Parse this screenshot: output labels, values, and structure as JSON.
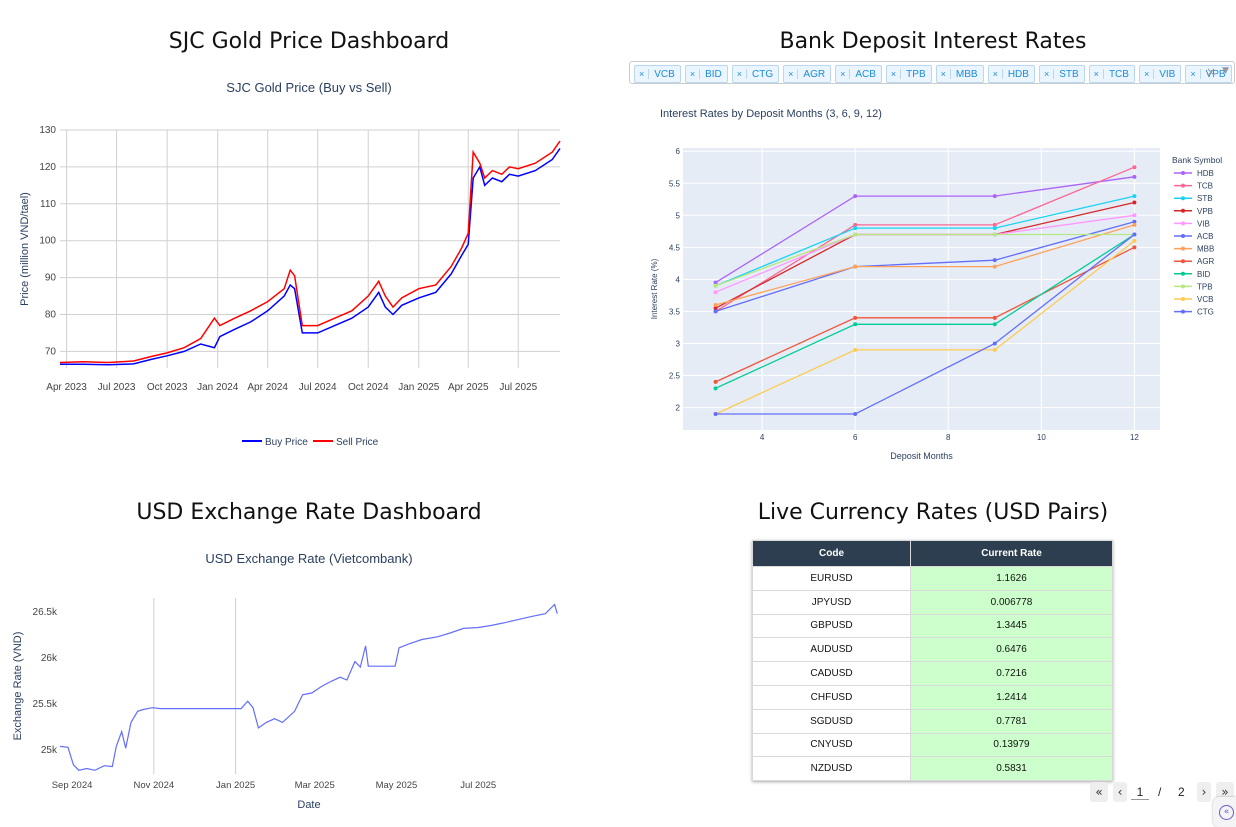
{
  "titles": {
    "gold": "SJC Gold Price Dashboard",
    "bank": "Bank Deposit Interest Rates",
    "usd": "USD Exchange Rate Dashboard",
    "live": "Live Currency Rates (USD Pairs)"
  },
  "colors": {
    "buy": "#0000ff",
    "sell": "#ff0000",
    "usd_line": "#636efa",
    "plot_bg": "#e5ecf6",
    "header_bg": "#2c3e50",
    "rate_bg": "#ccffcc"
  },
  "bank_filter": {
    "selected": [
      "VCB",
      "BID",
      "CTG",
      "AGR",
      "ACB",
      "TPB",
      "MBB",
      "HDB",
      "STB",
      "TCB",
      "VIB",
      "VPB"
    ],
    "remove_icon": "×",
    "clear_icon": "×"
  },
  "table": {
    "columns": [
      "Code",
      "Current Rate"
    ],
    "rows": [
      {
        "code": "EURUSD",
        "rate": "1.1626"
      },
      {
        "code": "JPYUSD",
        "rate": "0.006778"
      },
      {
        "code": "GBPUSD",
        "rate": "1.3445"
      },
      {
        "code": "AUDUSD",
        "rate": "0.6476"
      },
      {
        "code": "CADUSD",
        "rate": "0.7216"
      },
      {
        "code": "CHFUSD",
        "rate": "1.2414"
      },
      {
        "code": "SGDUSD",
        "rate": "0.7781"
      },
      {
        "code": "CNYUSD",
        "rate": "0.13979"
      },
      {
        "code": "NZDUSD",
        "rate": "0.5831"
      }
    ]
  },
  "pagination": {
    "current": "1",
    "separator": "/",
    "total": "2",
    "first_icon": "«",
    "prev_icon": "‹",
    "next_icon": "›",
    "last_icon": "»"
  },
  "chart_data": [
    {
      "id": "gold",
      "type": "line",
      "title": "SJC Gold Price (Buy vs Sell)",
      "xlabel": "",
      "ylabel": "Price (million VND/tael)",
      "ylim": [
        65.5,
        130
      ],
      "yticks": [
        70,
        80,
        90,
        100,
        110,
        120,
        130
      ],
      "x_tick_labels": [
        "Apr 2023",
        "Jul 2023",
        "Oct 2023",
        "Jan 2024",
        "Apr 2024",
        "Jul 2024",
        "Oct 2024",
        "Jan 2025",
        "Apr 2025",
        "Jul 2025"
      ],
      "x_ticks": [
        "2023-04-01",
        "2023-07-01",
        "2023-10-01",
        "2024-01-01",
        "2024-04-01",
        "2024-07-01",
        "2024-10-01",
        "2025-01-01",
        "2025-04-01",
        "2025-07-01"
      ],
      "xlim": [
        "2023-03-20",
        "2025-09-15"
      ],
      "legend_position": "bottom",
      "x": [
        "2023-03-20",
        "2023-05-01",
        "2023-06-15",
        "2023-08-01",
        "2023-09-01",
        "2023-10-01",
        "2023-11-01",
        "2023-12-01",
        "2023-12-26",
        "2024-01-05",
        "2024-02-01",
        "2024-03-01",
        "2024-04-01",
        "2024-05-01",
        "2024-05-12",
        "2024-05-20",
        "2024-06-03",
        "2024-06-15",
        "2024-07-01",
        "2024-08-01",
        "2024-09-01",
        "2024-10-01",
        "2024-10-20",
        "2024-11-01",
        "2024-11-15",
        "2024-12-01",
        "2025-01-01",
        "2025-02-01",
        "2025-03-01",
        "2025-03-20",
        "2025-04-01",
        "2025-04-10",
        "2025-04-22",
        "2025-05-01",
        "2025-05-15",
        "2025-06-01",
        "2025-06-15",
        "2025-07-01",
        "2025-08-01",
        "2025-09-01",
        "2025-09-15"
      ],
      "series": [
        {
          "name": "Buy Price",
          "values": [
            66.5,
            66.5,
            66.4,
            66.6,
            67.8,
            68.8,
            70.0,
            72.0,
            71.0,
            74.0,
            76.0,
            78.0,
            81.0,
            85.0,
            88.0,
            87.0,
            75.0,
            75.0,
            75.0,
            77.0,
            79.0,
            82.0,
            86.0,
            82.0,
            80.0,
            82.5,
            84.5,
            86.0,
            91.0,
            96.0,
            99.0,
            117.0,
            120.0,
            115.0,
            117.0,
            116.0,
            118.0,
            117.5,
            119.0,
            122.0,
            125.0
          ]
        },
        {
          "name": "Sell Price",
          "values": [
            67.0,
            67.2,
            67.0,
            67.4,
            68.6,
            69.6,
            71.0,
            73.5,
            79.0,
            77.0,
            79.0,
            81.0,
            83.5,
            87.0,
            92.0,
            90.5,
            77.0,
            77.0,
            77.0,
            79.0,
            81.0,
            85.0,
            89.0,
            85.0,
            82.0,
            84.5,
            87.0,
            88.0,
            93.0,
            98.0,
            102.0,
            124.0,
            121.0,
            117.0,
            119.0,
            118.0,
            120.0,
            119.5,
            121.0,
            124.0,
            127.0
          ]
        }
      ]
    },
    {
      "id": "bank",
      "type": "line",
      "title": "Interest Rates by Deposit Months (3, 6, 9, 12)",
      "xlabel": "Deposit Months",
      "ylabel": "Interest Rate (%)",
      "legend_title": "Bank Symbol",
      "legend_position": "right",
      "xlim": [
        2.3,
        12.55
      ],
      "ylim": [
        1.65,
        6.05
      ],
      "xticks": [
        4,
        6,
        8,
        10,
        12
      ],
      "yticks": [
        2,
        2.5,
        3,
        3.5,
        4,
        4.5,
        5,
        5.5,
        6
      ],
      "x": [
        3,
        6,
        9,
        12
      ],
      "series": [
        {
          "name": "HDB",
          "color": "#ab63fa",
          "values": [
            3.95,
            5.3,
            5.3,
            5.6
          ]
        },
        {
          "name": "TCB",
          "color": "#ff6692",
          "values": [
            3.5,
            4.85,
            4.85,
            5.75
          ]
        },
        {
          "name": "STB",
          "color": "#19d3f3",
          "values": [
            3.9,
            4.8,
            4.8,
            5.3
          ]
        },
        {
          "name": "VPB",
          "color": "#d62728",
          "values": [
            3.55,
            4.7,
            4.7,
            5.2
          ]
        },
        {
          "name": "VIB",
          "color": "#ff97ff",
          "values": [
            3.8,
            4.7,
            4.7,
            5.0
          ]
        },
        {
          "name": "ACB",
          "color": "#636efa",
          "values": [
            3.5,
            4.2,
            4.3,
            4.9
          ]
        },
        {
          "name": "MBB",
          "color": "#ffa15a",
          "values": [
            3.6,
            4.2,
            4.2,
            4.85
          ]
        },
        {
          "name": "AGR",
          "color": "#ef553b",
          "values": [
            2.4,
            3.4,
            3.4,
            4.5
          ]
        },
        {
          "name": "BID",
          "color": "#00cc96",
          "values": [
            2.3,
            3.3,
            3.3,
            4.7
          ]
        },
        {
          "name": "TPB",
          "color": "#b6e880",
          "values": [
            3.9,
            4.7,
            4.7,
            4.7
          ]
        },
        {
          "name": "VCB",
          "color": "#fecb52",
          "values": [
            1.9,
            2.9,
            2.9,
            4.6
          ]
        },
        {
          "name": "CTG",
          "color": "#636efa",
          "values": [
            1.9,
            1.9,
            3.0,
            4.7
          ]
        }
      ]
    },
    {
      "id": "usd",
      "type": "line",
      "title": "USD Exchange Rate (Vietcombank)",
      "xlabel": "Date",
      "ylabel": "Exchange Rate (VND)",
      "ylim": [
        24740,
        26650
      ],
      "yticks": [
        25000,
        25500,
        26000,
        26500
      ],
      "ytick_labels": [
        "25k",
        "25.5k",
        "26k",
        "26.5k"
      ],
      "x_tick_labels": [
        "Sep 2024",
        "Nov 2024",
        "Jan 2025",
        "Mar 2025",
        "May 2025",
        "Jul 2025"
      ],
      "x_ticks": [
        "2024-09-01",
        "2024-11-01",
        "2025-01-01",
        "2025-03-01",
        "2025-05-01",
        "2025-07-01"
      ],
      "xlim": [
        "2024-08-23",
        "2025-08-31"
      ],
      "x": [
        "2024-08-23",
        "2024-08-29",
        "2024-09-02",
        "2024-09-06",
        "2024-09-12",
        "2024-09-18",
        "2024-09-25",
        "2024-10-01",
        "2024-10-04",
        "2024-10-08",
        "2024-10-11",
        "2024-10-15",
        "2024-10-20",
        "2024-10-24",
        "2024-10-31",
        "2024-11-06",
        "2024-11-15",
        "2024-12-15",
        "2025-01-05",
        "2025-01-10",
        "2025-01-14",
        "2025-01-18",
        "2025-01-24",
        "2025-01-30",
        "2025-02-05",
        "2025-02-14",
        "2025-02-20",
        "2025-02-27",
        "2025-03-06",
        "2025-03-14",
        "2025-03-20",
        "2025-03-25",
        "2025-03-31",
        "2025-04-04",
        "2025-04-08",
        "2025-04-10",
        "2025-04-14",
        "2025-04-30",
        "2025-05-03",
        "2025-05-10",
        "2025-05-20",
        "2025-06-01",
        "2025-06-10",
        "2025-06-20",
        "2025-07-01",
        "2025-07-10",
        "2025-07-20",
        "2025-08-01",
        "2025-08-10",
        "2025-08-20",
        "2025-08-27",
        "2025-08-29"
      ],
      "series": [
        {
          "name": "USD",
          "values": [
            25040,
            25030,
            24840,
            24780,
            24800,
            24780,
            24830,
            24820,
            25040,
            25200,
            25020,
            25300,
            25420,
            25440,
            25460,
            25450,
            25450,
            25450,
            25450,
            25530,
            25460,
            25240,
            25300,
            25340,
            25300,
            25420,
            25600,
            25620,
            25690,
            25750,
            25790,
            25760,
            25960,
            25900,
            26130,
            25910,
            25910,
            25910,
            26110,
            26150,
            26200,
            26230,
            26270,
            26320,
            26330,
            26350,
            26380,
            26420,
            26450,
            26480,
            26580,
            26480
          ]
        }
      ]
    }
  ]
}
